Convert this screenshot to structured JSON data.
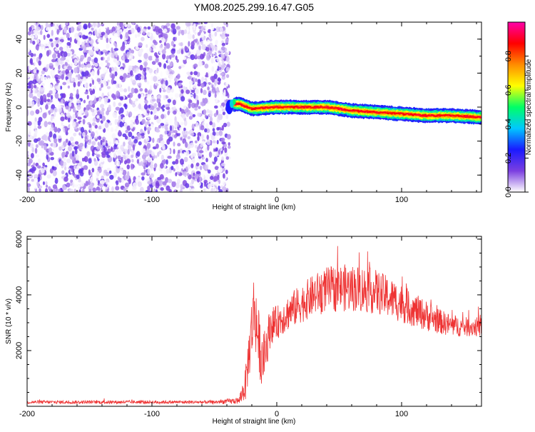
{
  "title": "YM08.2025.299.16.47.G05",
  "chart_data": [
    {
      "type": "heatmap",
      "xlabel": "Height of straight line (km)",
      "ylabel": "Frequency (Hz)",
      "xlim": [
        -200,
        164
      ],
      "ylim": [
        -50,
        50
      ],
      "x_ticks": [
        -200,
        -100,
        0,
        100
      ],
      "y_ticks": [
        -40,
        -20,
        0,
        20,
        40
      ],
      "colorbar": {
        "label": "Normalized spectral amplitude",
        "range": [
          0,
          1
        ],
        "ticks": [
          0.0,
          0.2,
          0.4,
          0.6,
          0.8
        ],
        "tick_labels": [
          "0.0",
          "0.2",
          "0.4",
          "0.6",
          "0.8"
        ],
        "colormap": [
          "#ffffff",
          "#7b3fe0",
          "#1a1aff",
          "#00c8ff",
          "#00ff66",
          "#ffff00",
          "#ff8c00",
          "#ff0000",
          "#ff00aa"
        ]
      },
      "noise_region": {
        "x_range": [
          -200,
          -38
        ],
        "freq_range": [
          -50,
          50
        ],
        "amplitude": "low (0.0-0.2)"
      },
      "signal_track": [
        {
          "x": -40,
          "freq": 1
        },
        {
          "x": -30,
          "freq": 2
        },
        {
          "x": -20,
          "freq": -1
        },
        {
          "x": 0,
          "freq": 0
        },
        {
          "x": 20,
          "freq": 0
        },
        {
          "x": 40,
          "freq": 0
        },
        {
          "x": 60,
          "freq": -2
        },
        {
          "x": 80,
          "freq": -3
        },
        {
          "x": 100,
          "freq": -4
        },
        {
          "x": 120,
          "freq": -5
        },
        {
          "x": 140,
          "freq": -5
        },
        {
          "x": 164,
          "freq": -6
        }
      ]
    },
    {
      "type": "line",
      "xlabel": "Height of straight line (km)",
      "ylabel": "SNR (10 * v/v)",
      "xlim": [
        -200,
        164
      ],
      "ylim": [
        0,
        6100
      ],
      "x_ticks": [
        -200,
        -100,
        0,
        100
      ],
      "y_ticks": [
        2000,
        4000,
        6000
      ],
      "color": "#ee3333",
      "series": [
        {
          "name": "SNR",
          "x": [
            -200,
            -150,
            -100,
            -50,
            -30,
            -25,
            -20,
            -18,
            -15,
            -12,
            -10,
            -5,
            0,
            10,
            20,
            30,
            40,
            50,
            60,
            70,
            80,
            90,
            100,
            110,
            120,
            130,
            140,
            150,
            164
          ],
          "y": [
            150,
            150,
            150,
            150,
            200,
            800,
            2800,
            3600,
            2500,
            1600,
            1800,
            2900,
            3000,
            3400,
            3700,
            4000,
            4200,
            4250,
            4250,
            4200,
            4100,
            3900,
            3700,
            3450,
            3250,
            3050,
            2900,
            2850,
            2850
          ],
          "spread": [
            60,
            60,
            60,
            60,
            120,
            600,
            1200,
            1400,
            1200,
            900,
            900,
            700,
            600,
            650,
            700,
            750,
            800,
            850,
            850,
            850,
            800,
            750,
            700,
            600,
            550,
            450,
            400,
            350,
            350
          ]
        }
      ]
    }
  ]
}
